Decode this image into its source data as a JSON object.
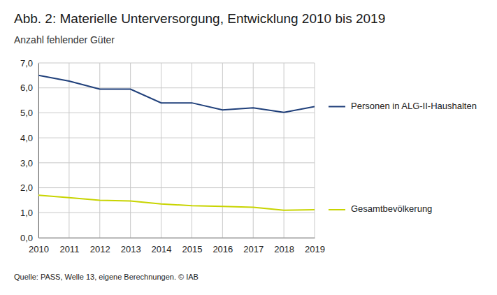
{
  "chart_data": {
    "type": "line",
    "title": "Abb. 2: Materielle Unterversorgung, Entwicklung 2010 bis 2019",
    "subtitle": "Anzahl fehlender Güter",
    "source": "Quelle: PASS, Welle 13, eigene Berechnungen. © IAB",
    "x": [
      2010,
      2011,
      2012,
      2013,
      2014,
      2015,
      2016,
      2017,
      2018,
      2019
    ],
    "series": [
      {
        "name": "Personen in ALG-II-Haushalten",
        "color": "#1f3f7a",
        "values": [
          6.5,
          6.27,
          5.95,
          5.95,
          5.4,
          5.4,
          5.12,
          5.2,
          5.02,
          5.25
        ]
      },
      {
        "name": "Gesamtbevölkerung",
        "color": "#c8d400",
        "values": [
          1.7,
          1.6,
          1.5,
          1.47,
          1.35,
          1.28,
          1.25,
          1.22,
          1.1,
          1.12
        ]
      }
    ],
    "xlim": [
      2010,
      2019
    ],
    "xticks": [
      2010,
      2011,
      2012,
      2013,
      2014,
      2015,
      2016,
      2017,
      2018,
      2019
    ],
    "ylim": [
      0,
      7
    ],
    "yticks": [
      {
        "value": 0,
        "label": "0,0"
      },
      {
        "value": 1,
        "label": "1,0"
      },
      {
        "value": 2,
        "label": "2,0"
      },
      {
        "value": 3,
        "label": "3,0"
      },
      {
        "value": 4,
        "label": "4,0"
      },
      {
        "value": 5,
        "label": "5,0"
      },
      {
        "value": 6,
        "label": "6,0"
      },
      {
        "value": 7,
        "label": "7,0"
      }
    ],
    "grid": true,
    "legend": "right"
  }
}
